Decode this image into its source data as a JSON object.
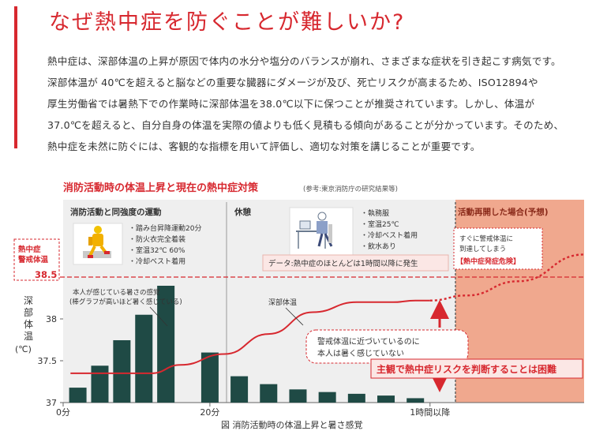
{
  "article": {
    "title": "なぜ熱中症を防ぐことが難しいか?",
    "paragraph_lines": [
      "熱中症は、深部体温の上昇が原因で体内の水分や塩分のバランスが崩れ、さまざまな症状を引き起こす病気です。",
      "深部体温が 40℃を超えると脳などの重要な臓器にダメージが及び、死亡リスクが高まるため、ISO12894や",
      "厚生労働省では暑熱下での作業時に深部体温を38.0℃以下に保つことが推奨されています。しかし、体温が",
      "37.0℃を超えると、自分自身の体温を実際の値よりも低く見積もる傾向があることが分かっています。そのため、",
      "熱中症を未然に防ぐには、客観的な指標を用いて評価し、適切な対策を講じることが重要です。"
    ]
  },
  "colors": {
    "accent": "#d7282f",
    "bar": "#1f4a45",
    "grey_band": "#d9d9d9",
    "salmon_band": "#f0a88e",
    "line": "#d7282f"
  },
  "chart_data": {
    "type": "bar",
    "title": "消防活動時の体温上昇と現在の熱中症対策",
    "title_note": "(参考:東京消防庁の研究結果等)",
    "caption": "図 消防活動時の体温上昇と暑さ感覚",
    "ylabel": "深部体温 (℃)",
    "ylabel_chars": [
      "深",
      "部",
      "体",
      "温"
    ],
    "ylabel_unit": "(℃)",
    "ylim": [
      37,
      39.5
    ],
    "y_ticks": [
      {
        "value": 37,
        "label": "37"
      },
      {
        "value": 37.5,
        "label": "37.5"
      },
      {
        "value": 38,
        "label": "38"
      }
    ],
    "x_ticks": [
      {
        "value": 0,
        "label": "0分"
      },
      {
        "value": 20,
        "label": "20分"
      },
      {
        "value": 50,
        "label": "1時間以降"
      }
    ],
    "xlim": [
      0,
      71
    ],
    "perceived_heat": {
      "label_lines": [
        "本人が感じている暑さの感覚",
        "(棒グラフが高いほど暑く感じている)"
      ],
      "x": [
        2,
        5,
        8,
        11,
        14,
        20,
        24,
        28,
        32,
        36,
        40,
        44,
        48
      ],
      "values": [
        0.17,
        0.42,
        0.71,
        1.0,
        1.33,
        0.57,
        0.3,
        0.21,
        0.15,
        0.12,
        0.1,
        0.08,
        0.05
      ]
    },
    "core_temp": {
      "label": "深部体温",
      "x": [
        1,
        12,
        16,
        22,
        28,
        34,
        40,
        45,
        48,
        50
      ],
      "y": [
        37.35,
        37.35,
        37.45,
        37.58,
        37.82,
        38.08,
        38.2,
        38.2,
        38.22,
        38.22
      ],
      "projection_x": [
        50,
        55,
        62,
        71
      ],
      "projection_y": [
        38.22,
        38.28,
        38.45,
        38.77
      ]
    },
    "threshold": {
      "value": 38.5,
      "label": "38.5",
      "name_lines": [
        "熱中症",
        "警戒体温"
      ]
    },
    "phases": [
      {
        "title": "消防活動と同強度の運動",
        "items": [
          "・踏み台昇降運動20分",
          "・防火衣完全着装",
          "・室温32℃ 60%",
          "・冷却ベスト着用"
        ]
      },
      {
        "title": "休憩",
        "items": [
          "・執務服",
          "・室温25℃",
          "・冷却ベスト着用",
          "・飲水あり"
        ]
      },
      {
        "title": "活動再開した場合(予想)",
        "note_lines": [
          "すぐに警戒体温に",
          "到達してしまう"
        ],
        "note_emphasis": "【熱中症発症危険】"
      }
    ],
    "annotations": {
      "data_note": "データ:熱中症のほとんどは1時間以降に発生",
      "warning_lines": [
        "警戒体温に近づいているのに",
        "本人は暑く感じていない"
      ],
      "conclusion": "主観で熱中症リスクを判断することは困難"
    }
  }
}
